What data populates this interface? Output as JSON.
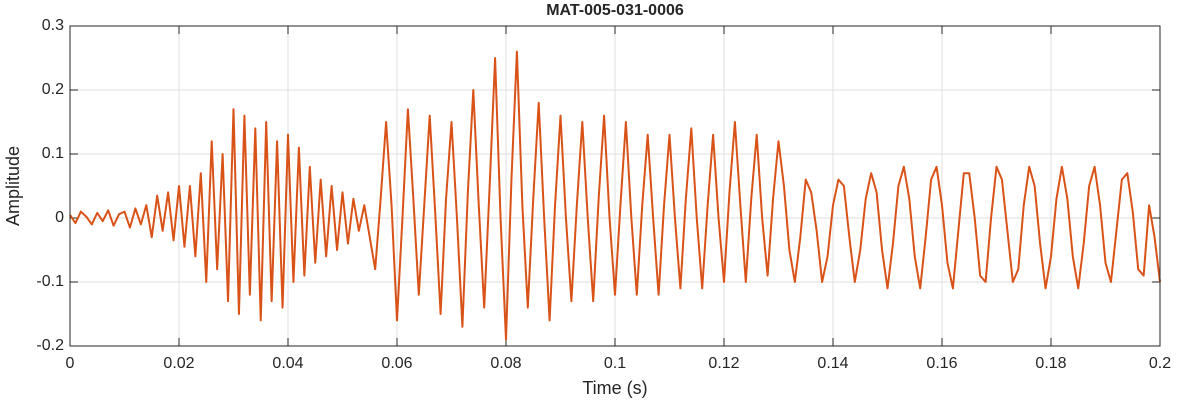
{
  "chart_data": {
    "type": "line",
    "title": "MAT-005-031-0006",
    "xlabel": "Time (s)",
    "ylabel": "Amplitude",
    "color": "#d95319",
    "grid": true,
    "xlim": [
      0,
      0.2
    ],
    "ylim": [
      -0.2,
      0.3
    ],
    "xticks": [
      0,
      0.02,
      0.04,
      0.06,
      0.08,
      0.1,
      0.12,
      0.14,
      0.16,
      0.18,
      0.2
    ],
    "yticks": [
      -0.2,
      -0.1,
      0,
      0.1,
      0.2,
      0.3
    ],
    "x": [
      0,
      0.001,
      0.002,
      0.003,
      0.004,
      0.005,
      0.006,
      0.007,
      0.008,
      0.009,
      0.01,
      0.011,
      0.012,
      0.013,
      0.014,
      0.015,
      0.016,
      0.017,
      0.018,
      0.019,
      0.02,
      0.021,
      0.022,
      0.023,
      0.024,
      0.025,
      0.026,
      0.027,
      0.028,
      0.029,
      0.03,
      0.031,
      0.032,
      0.033,
      0.034,
      0.035,
      0.036,
      0.037,
      0.038,
      0.039,
      0.04,
      0.041,
      0.042,
      0.043,
      0.044,
      0.045,
      0.046,
      0.047,
      0.048,
      0.049,
      0.05,
      0.051,
      0.052,
      0.053,
      0.054,
      0.055,
      0.056,
      0.057,
      0.058,
      0.059,
      0.06,
      0.061,
      0.062,
      0.063,
      0.064,
      0.065,
      0.066,
      0.067,
      0.068,
      0.069,
      0.07,
      0.071,
      0.072,
      0.073,
      0.074,
      0.075,
      0.076,
      0.077,
      0.078,
      0.079,
      0.08,
      0.081,
      0.082,
      0.083,
      0.084,
      0.085,
      0.086,
      0.087,
      0.088,
      0.089,
      0.09,
      0.091,
      0.092,
      0.093,
      0.094,
      0.095,
      0.096,
      0.097,
      0.098,
      0.099,
      0.1,
      0.101,
      0.102,
      0.103,
      0.104,
      0.105,
      0.106,
      0.107,
      0.108,
      0.109,
      0.11,
      0.111,
      0.112,
      0.113,
      0.114,
      0.115,
      0.116,
      0.117,
      0.118,
      0.119,
      0.12,
      0.121,
      0.122,
      0.123,
      0.124,
      0.125,
      0.126,
      0.127,
      0.128,
      0.129,
      0.13,
      0.131,
      0.132,
      0.133,
      0.134,
      0.135,
      0.136,
      0.137,
      0.138,
      0.139,
      0.14,
      0.141,
      0.142,
      0.143,
      0.144,
      0.145,
      0.146,
      0.147,
      0.148,
      0.149,
      0.15,
      0.151,
      0.152,
      0.153,
      0.154,
      0.155,
      0.156,
      0.157,
      0.158,
      0.159,
      0.16,
      0.161,
      0.162,
      0.163,
      0.164,
      0.165,
      0.166,
      0.167,
      0.168,
      0.169,
      0.17,
      0.171,
      0.172,
      0.173,
      0.174,
      0.175,
      0.176,
      0.177,
      0.178,
      0.179,
      0.18,
      0.181,
      0.182,
      0.183,
      0.184,
      0.185,
      0.186,
      0.187,
      0.188,
      0.189,
      0.19,
      0.191,
      0.192,
      0.193,
      0.194,
      0.195,
      0.196,
      0.197,
      0.198,
      0.199,
      0.2
    ],
    "values": [
      0.005,
      -0.008,
      0.01,
      0.002,
      -0.01,
      0.008,
      -0.005,
      0.012,
      -0.012,
      0.006,
      0.01,
      -0.015,
      0.015,
      -0.01,
      0.02,
      -0.03,
      0.035,
      -0.02,
      0.04,
      -0.035,
      0.05,
      -0.045,
      0.05,
      -0.06,
      0.07,
      -0.1,
      0.12,
      -0.08,
      0.1,
      -0.13,
      0.17,
      -0.15,
      0.16,
      -0.12,
      0.14,
      -0.16,
      0.15,
      -0.13,
      0.12,
      -0.14,
      0.13,
      -0.1,
      0.11,
      -0.09,
      0.08,
      -0.07,
      0.06,
      -0.06,
      0.05,
      -0.05,
      0.04,
      -0.04,
      0.03,
      -0.02,
      0.02,
      -0.03,
      -0.08,
      0.03,
      0.15,
      0.02,
      -0.16,
      0,
      0.17,
      0.03,
      -0.12,
      0.02,
      0.16,
      0.01,
      -0.15,
      0.03,
      0.15,
      0,
      -0.17,
      0.04,
      0.2,
      0.02,
      -0.14,
      0.05,
      0.25,
      0,
      -0.19,
      0.06,
      0.26,
      0.02,
      -0.14,
      0.03,
      0.18,
      0,
      -0.16,
      0.02,
      0.16,
      0,
      -0.13,
      0.02,
      0.15,
      0,
      -0.13,
      0.03,
      0.16,
      0,
      -0.12,
      0.02,
      0.15,
      0,
      -0.12,
      0.02,
      0.13,
      0,
      -0.12,
      0.02,
      0.13,
      0,
      -0.11,
      0.03,
      0.14,
      0,
      -0.11,
      0.02,
      0.13,
      0,
      -0.1,
      0.04,
      0.15,
      0.02,
      -0.1,
      0.03,
      0.13,
      0,
      -0.09,
      0.03,
      0.12,
      0.05,
      -0.05,
      -0.1,
      -0.03,
      0.06,
      0.04,
      -0.02,
      -0.1,
      -0.06,
      0.02,
      0.06,
      0.05,
      -0.03,
      -0.1,
      -0.05,
      0.03,
      0.07,
      0.04,
      -0.05,
      -0.11,
      -0.04,
      0.05,
      0.08,
      0.03,
      -0.06,
      -0.11,
      -0.03,
      0.06,
      0.08,
      0.02,
      -0.07,
      -0.11,
      -0.02,
      0.07,
      0.07,
      0,
      -0.09,
      -0.1,
      0,
      0.08,
      0.06,
      -0.02,
      -0.1,
      -0.08,
      0.02,
      0.08,
      0.05,
      -0.04,
      -0.11,
      -0.06,
      0.03,
      0.08,
      0.03,
      -0.06,
      -0.11,
      -0.04,
      0.05,
      0.08,
      0.02,
      -0.07,
      -0.1,
      -0.02,
      0.06,
      0.07,
      0.01,
      -0.08,
      -0.09,
      0.02,
      -0.03,
      -0.1
    ]
  }
}
